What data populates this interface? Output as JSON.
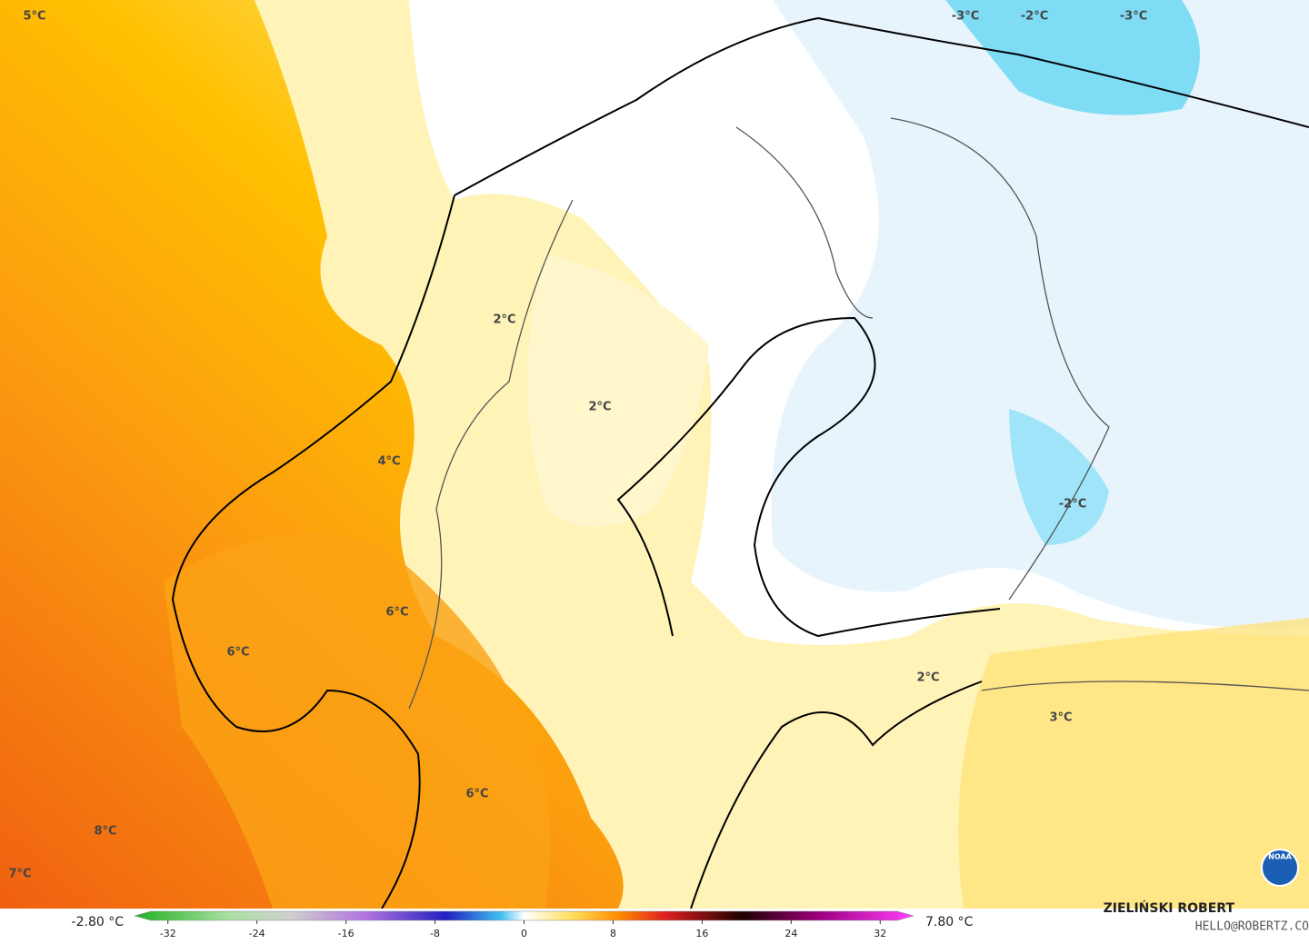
{
  "map": {
    "labels": [
      "5°C",
      "-3°C",
      "-2°C",
      "-3°C",
      "2°C",
      "2°C",
      "4°C",
      "-2°C",
      "6°C",
      "6°C",
      "2°C",
      "3°C",
      "6°C",
      "8°C",
      "7°C"
    ],
    "colorbar": {
      "min_label": "-2.80 °C",
      "max_label": "7.80 °C",
      "lim": [
        -35,
        35
      ],
      "ticks": [
        -32,
        -24,
        -16,
        -8,
        0,
        8,
        16,
        24,
        32
      ]
    },
    "author": "ZIELIŃSKI ROBERT",
    "email": "HELLO@ROBERTZ.CO",
    "logo_text": "NOAA"
  }
}
